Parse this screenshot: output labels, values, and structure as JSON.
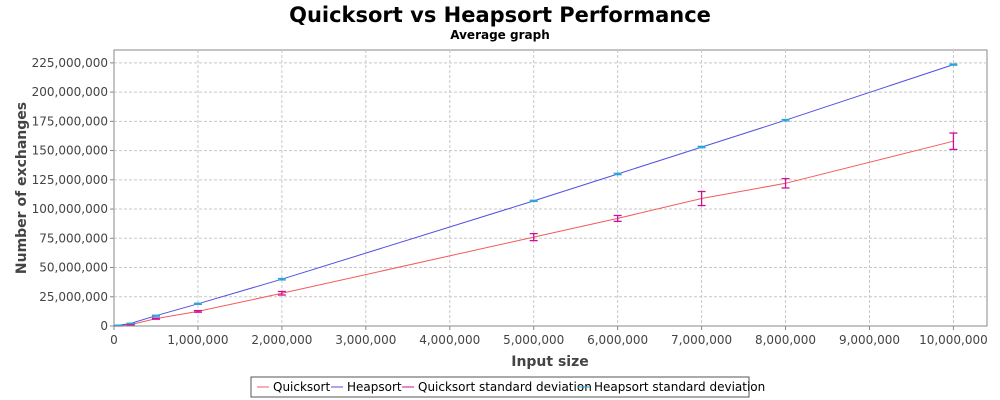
{
  "chart_data": {
    "type": "line",
    "title": "Quicksort vs Heapsort Performance",
    "subtitle": "Average graph",
    "xlabel": "Input size",
    "ylabel": "Number of exchanges",
    "xlim": [
      0,
      10400000
    ],
    "ylim": [
      0,
      236000000
    ],
    "grid": true,
    "legend_position": "bottom",
    "x_ticks": [
      0,
      1000000,
      2000000,
      3000000,
      4000000,
      5000000,
      6000000,
      7000000,
      8000000,
      9000000,
      10000000
    ],
    "x_tick_labels": [
      "0",
      "1,000,000",
      "2,000,000",
      "3,000,000",
      "4,000,000",
      "5,000,000",
      "6,000,000",
      "7,000,000",
      "8,000,000",
      "9,000,000",
      "10,000,000"
    ],
    "y_ticks": [
      0,
      25000000,
      50000000,
      75000000,
      100000000,
      125000000,
      150000000,
      175000000,
      200000000,
      225000000
    ],
    "y_tick_labels": [
      "0",
      "25,000,000",
      "50,000,000",
      "75,000,000",
      "100,000,000",
      "125,000,000",
      "150,000,000",
      "175,000,000",
      "200,000,000",
      "225,000,000"
    ],
    "x": [
      50000,
      200000,
      500000,
      1000000,
      2000000,
      5000000,
      6000000,
      7000000,
      8000000,
      10000000
    ],
    "series": [
      {
        "name": "Quicksort",
        "color": "#f25c5c",
        "values": [
          300000,
          1200000,
          6300000,
          12500000,
          28000000,
          76000000,
          92000000,
          109000000,
          122000000,
          158000000
        ]
      },
      {
        "name": "Heapsort",
        "color": "#5050e0",
        "values": [
          600000,
          2200000,
          8800000,
          19000000,
          40000000,
          107000000,
          130000000,
          153000000,
          176000000,
          223500000
        ]
      }
    ],
    "error_bars": [
      {
        "name": "Quicksort standard deviation",
        "color": "#cc1199",
        "low": [
          200000,
          1000000,
          5800000,
          11800000,
          26500000,
          73000000,
          89500000,
          103000000,
          118000000,
          151000000
        ],
        "high": [
          400000,
          1400000,
          6800000,
          13200000,
          29500000,
          79000000,
          94500000,
          115000000,
          126000000,
          165000000
        ]
      },
      {
        "name": "Heapsort standard deviation",
        "color": "#2aa6d6",
        "low": [
          500000,
          2000000,
          8400000,
          18500000,
          39400000,
          106500000,
          129400000,
          152400000,
          175400000,
          223000000
        ],
        "high": [
          700000,
          2400000,
          9200000,
          19500000,
          40600000,
          107500000,
          130600000,
          153600000,
          176600000,
          224000000
        ]
      }
    ]
  }
}
